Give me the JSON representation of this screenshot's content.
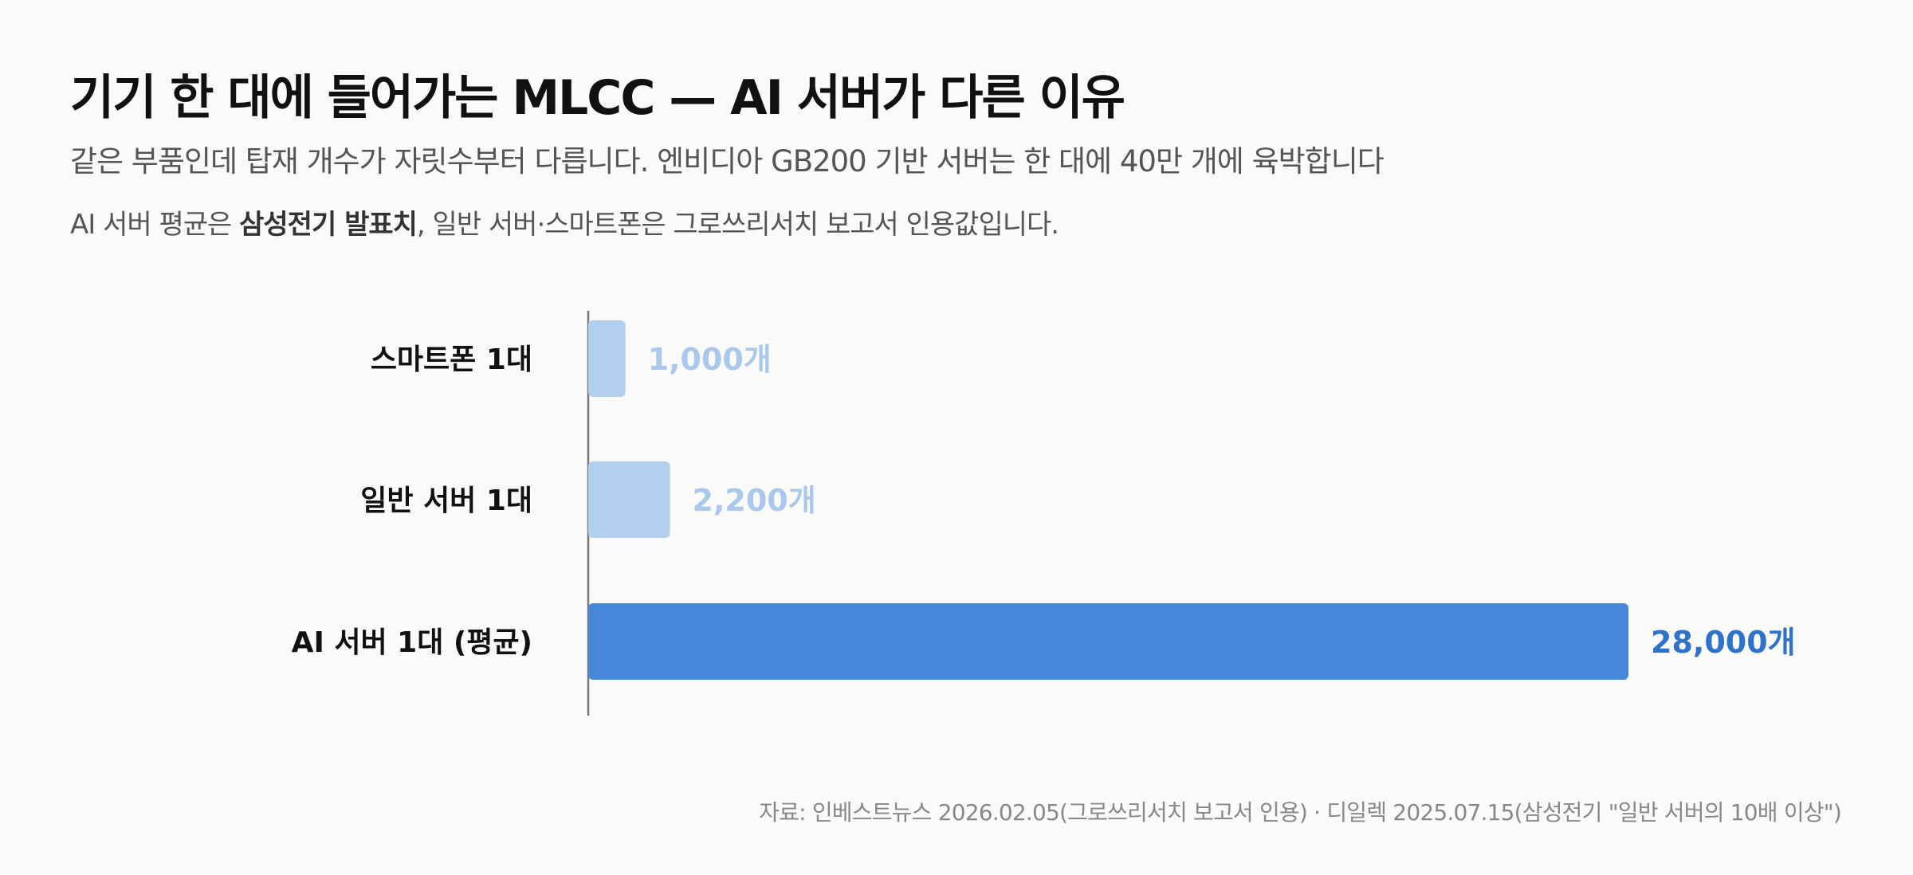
{
  "title": "기기 한 대에 들어가는 MLCC — AI 서버가 다른 이유",
  "subtitle": "같은 부품인데 탑재 개수가 자릿수부터 다릅니다. 엔비디아 GB200 기반 서버는 한 대에 40만 개에 육박합니다",
  "note": {
    "prefix": "AI 서버 평균은 ",
    "bold": "삼성전기 발표치",
    "suffix": ", 일반 서버·스마트폰은 그로쓰리서치 보고서 인용값입니다."
  },
  "source": "자료: 인베스트뉴스 2026.02.05(그로쓰리서치 보고서 인용) · 디일렉 2025.07.15(삼성전기 \"일반 서버의 10배 이상\")",
  "chart_data": {
    "type": "bar",
    "orientation": "horizontal",
    "categories": [
      "스마트폰 1대",
      "일반 서버 1대",
      "AI 서버 1대 (평균)"
    ],
    "values": [
      1000,
      2200,
      28000
    ],
    "value_labels": [
      "1,000개",
      "2,200개",
      "28,000개"
    ],
    "colors": [
      "#b3cff0",
      "#b3cff0",
      "#4588da"
    ],
    "label_colors": [
      "#a9c8ec",
      "#a9c8ec",
      "#2f72c9"
    ],
    "xlim": [
      0,
      28000
    ],
    "grid": false
  }
}
